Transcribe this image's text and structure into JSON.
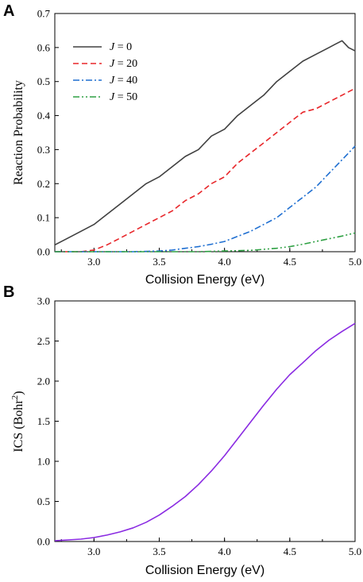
{
  "figure": {
    "panel_a_letter": "A",
    "panel_b_letter": "B"
  },
  "chart_data": [
    {
      "type": "line",
      "panel": "A",
      "xlabel": "Collision Energy (eV)",
      "ylabel": "Reaction Probability",
      "xlim": [
        2.7,
        5.0
      ],
      "ylim": [
        0.0,
        0.7
      ],
      "xticks": [
        "3.0",
        "3.5",
        "4.0",
        "4.5",
        "5.0"
      ],
      "yticks": [
        "0.0",
        "0.1",
        "0.2",
        "0.3",
        "0.4",
        "0.5",
        "0.6",
        "0.7"
      ],
      "legend_position": "top-left",
      "grid": false,
      "series": [
        {
          "name": "J = 0",
          "legend_prefix": "J",
          "legend_suffix": " = 0",
          "color": "#404040",
          "style": "solid",
          "x": [
            2.7,
            2.8,
            2.9,
            3.0,
            3.1,
            3.2,
            3.3,
            3.4,
            3.5,
            3.6,
            3.7,
            3.8,
            3.9,
            4.0,
            4.1,
            4.2,
            4.3,
            4.4,
            4.5,
            4.6,
            4.7,
            4.8,
            4.85,
            4.9,
            4.95,
            5.0
          ],
          "values": [
            0.02,
            0.04,
            0.06,
            0.08,
            0.11,
            0.14,
            0.17,
            0.2,
            0.22,
            0.25,
            0.28,
            0.3,
            0.34,
            0.36,
            0.4,
            0.43,
            0.46,
            0.5,
            0.53,
            0.56,
            0.58,
            0.6,
            0.61,
            0.62,
            0.6,
            0.59
          ]
        },
        {
          "name": "J = 20",
          "legend_prefix": "J",
          "legend_suffix": " = 20",
          "color": "#e8262a",
          "style": "dashed",
          "x": [
            2.7,
            2.9,
            3.0,
            3.1,
            3.2,
            3.3,
            3.4,
            3.5,
            3.6,
            3.7,
            3.8,
            3.9,
            4.0,
            4.1,
            4.2,
            4.3,
            4.4,
            4.5,
            4.6,
            4.7,
            4.8,
            4.9,
            5.0
          ],
          "values": [
            0.0,
            0.0,
            0.005,
            0.02,
            0.04,
            0.06,
            0.08,
            0.1,
            0.12,
            0.15,
            0.17,
            0.2,
            0.22,
            0.26,
            0.29,
            0.32,
            0.35,
            0.38,
            0.41,
            0.42,
            0.44,
            0.46,
            0.48
          ]
        },
        {
          "name": "J = 40",
          "legend_prefix": "J",
          "legend_suffix": " = 40",
          "color": "#1f6fd1",
          "style": "dashdot",
          "x": [
            2.7,
            3.3,
            3.5,
            3.6,
            3.7,
            3.8,
            3.9,
            4.0,
            4.1,
            4.2,
            4.3,
            4.4,
            4.5,
            4.6,
            4.7,
            4.8,
            4.9,
            5.0
          ],
          "values": [
            0.0,
            0.0,
            0.002,
            0.005,
            0.01,
            0.015,
            0.022,
            0.03,
            0.045,
            0.06,
            0.08,
            0.1,
            0.13,
            0.16,
            0.19,
            0.23,
            0.27,
            0.31
          ]
        },
        {
          "name": "J = 50",
          "legend_prefix": "J",
          "legend_suffix": " = 50",
          "color": "#2ea043",
          "style": "dashdotdot",
          "x": [
            2.7,
            3.8,
            4.0,
            4.2,
            4.3,
            4.4,
            4.5,
            4.6,
            4.7,
            4.8,
            4.9,
            5.0
          ],
          "values": [
            0.0,
            0.0,
            0.002,
            0.004,
            0.007,
            0.01,
            0.015,
            0.022,
            0.03,
            0.038,
            0.046,
            0.055
          ]
        }
      ]
    },
    {
      "type": "line",
      "panel": "B",
      "xlabel": "Collision Energy (eV)",
      "ylabel_main": "ICS (Bohr",
      "ylabel_sup": "2",
      "ylabel_close": ")",
      "xlim": [
        2.7,
        5.0
      ],
      "ylim": [
        0.0,
        3.0
      ],
      "xticks": [
        "3.0",
        "3.5",
        "4.0",
        "4.5",
        "5.0"
      ],
      "yticks": [
        "0.0",
        "0.5",
        "1.0",
        "1.5",
        "2.0",
        "2.5",
        "3.0"
      ],
      "grid": false,
      "series": [
        {
          "color": "#8a2be2",
          "style": "solid",
          "x": [
            2.7,
            2.8,
            2.9,
            3.0,
            3.1,
            3.2,
            3.3,
            3.4,
            3.5,
            3.6,
            3.7,
            3.8,
            3.9,
            4.0,
            4.1,
            4.2,
            4.3,
            4.4,
            4.5,
            4.6,
            4.7,
            4.8,
            4.9,
            5.0
          ],
          "values": [
            0.01,
            0.02,
            0.03,
            0.05,
            0.08,
            0.12,
            0.17,
            0.24,
            0.33,
            0.44,
            0.56,
            0.71,
            0.88,
            1.07,
            1.28,
            1.49,
            1.7,
            1.9,
            2.08,
            2.23,
            2.38,
            2.51,
            2.62,
            2.72
          ]
        }
      ]
    }
  ]
}
